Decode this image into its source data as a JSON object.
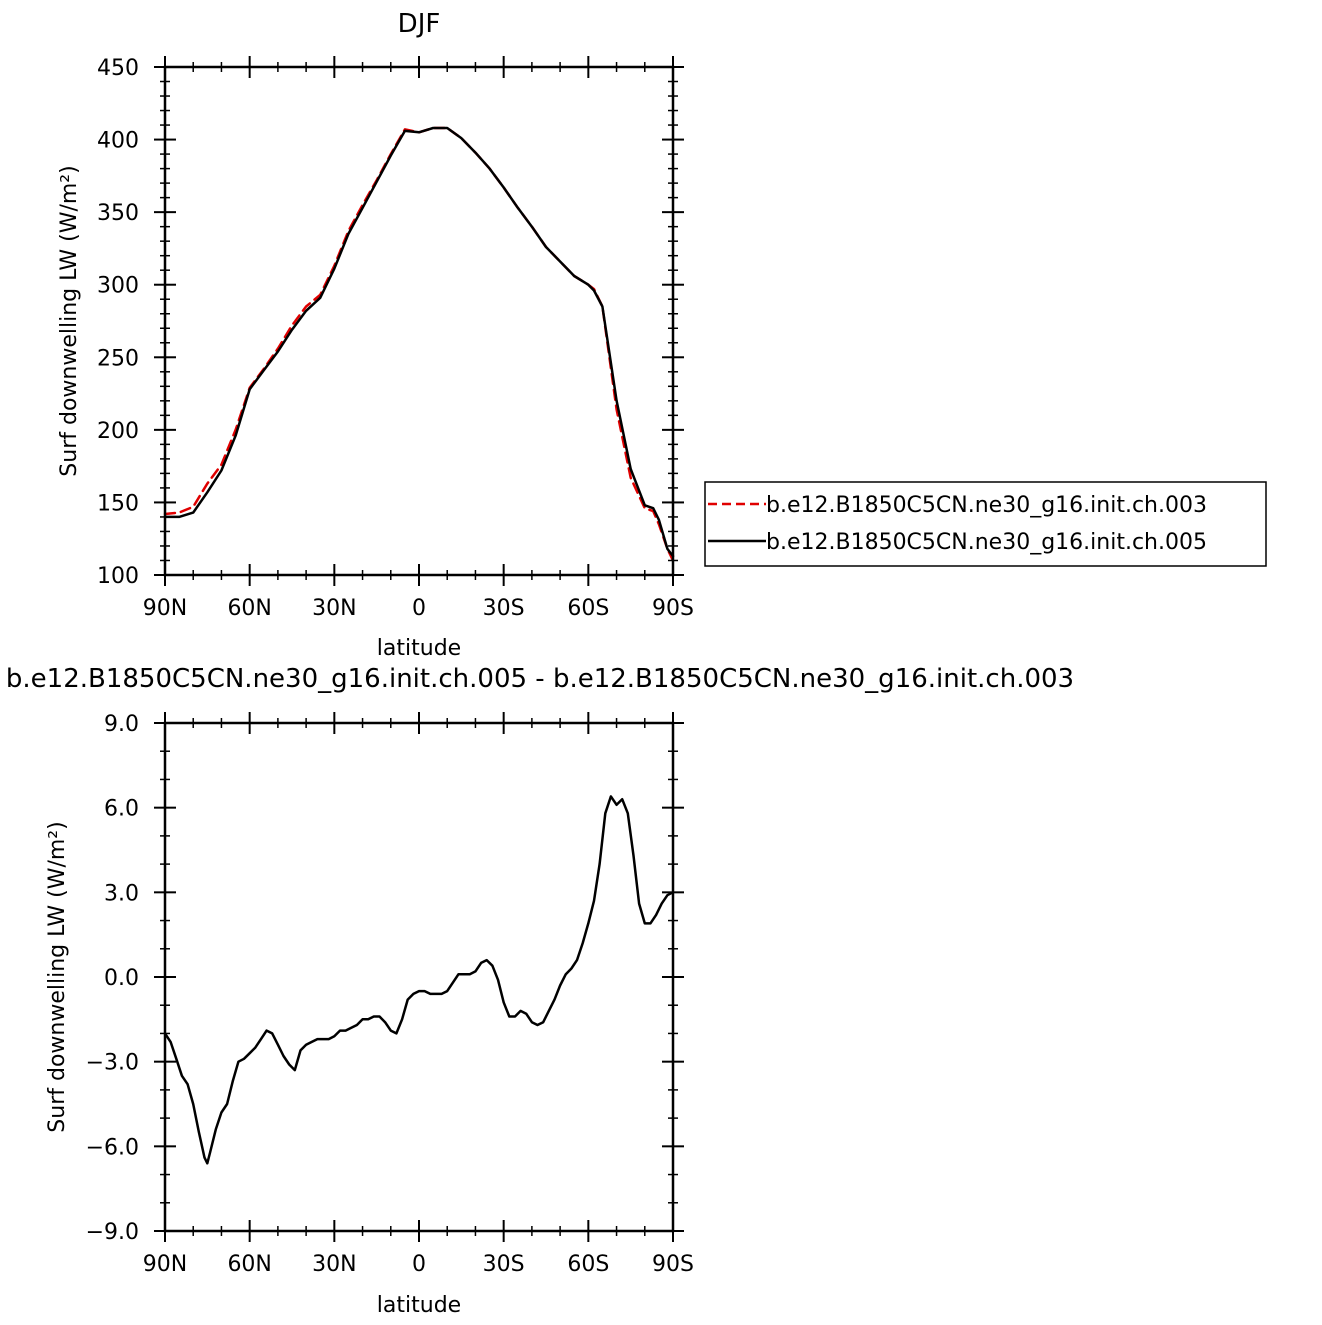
{
  "chart_data": [
    {
      "type": "line",
      "title": "DJF",
      "xlabel": "latitude",
      "ylabel": "Surf  downwelling LW (W/m²)",
      "xlim": [
        90,
        -90
      ],
      "ylim": [
        100,
        450
      ],
      "x_ticks": [
        {
          "value": 90,
          "label": "90N"
        },
        {
          "value": 60,
          "label": "60N"
        },
        {
          "value": 30,
          "label": "30N"
        },
        {
          "value": 0,
          "label": "0"
        },
        {
          "value": -30,
          "label": "30S"
        },
        {
          "value": -60,
          "label": "60S"
        },
        {
          "value": -90,
          "label": "90S"
        }
      ],
      "y_ticks": [
        "100",
        "150",
        "200",
        "250",
        "300",
        "350",
        "400",
        "450"
      ],
      "legend_placement": "right",
      "series": [
        {
          "name": "b.e12.B1850C5CN.ne30_g16.init.ch.003",
          "color": "#e00000",
          "dash": "dashed",
          "x": [
            90,
            85,
            80,
            75,
            70,
            65,
            60,
            55,
            50,
            45,
            40,
            35,
            30,
            25,
            20,
            15,
            10,
            5,
            0,
            -5,
            -10,
            -15,
            -20,
            -25,
            -30,
            -35,
            -40,
            -45,
            -50,
            -55,
            -60,
            -62,
            -65,
            -70,
            -75,
            -80,
            -83,
            -85,
            -88,
            -90
          ],
          "y": [
            142,
            143,
            147,
            163,
            176,
            200,
            229,
            242,
            256,
            272,
            285,
            293,
            313,
            337,
            355,
            372,
            390,
            407,
            405,
            408,
            408,
            401,
            391,
            380,
            367,
            353,
            340,
            326,
            316,
            306,
            300,
            297,
            285,
            214,
            167,
            146,
            144,
            135,
            118,
            110
          ]
        },
        {
          "name": "b.e12.B1850C5CN.ne30_g16.init.ch.005",
          "color": "#000000",
          "dash": "solid",
          "x": [
            90,
            85,
            80,
            75,
            70,
            65,
            60,
            55,
            50,
            45,
            40,
            35,
            30,
            25,
            20,
            15,
            10,
            5,
            0,
            -5,
            -10,
            -15,
            -20,
            -25,
            -30,
            -35,
            -40,
            -45,
            -50,
            -55,
            -60,
            -62,
            -65,
            -70,
            -75,
            -80,
            -83,
            -85,
            -88,
            -90
          ],
          "y": [
            140,
            140,
            143,
            157,
            172,
            196,
            228,
            241,
            254,
            269,
            282,
            291,
            311,
            335,
            353,
            371,
            389,
            406,
            405,
            408,
            408,
            401,
            391,
            380,
            367,
            353,
            340,
            326,
            316,
            306,
            300,
            296,
            285,
            220,
            173,
            148,
            146,
            138,
            118,
            113
          ]
        }
      ]
    },
    {
      "type": "line",
      "title": "b.e12.B1850C5CN.ne30_g16.init.ch.005 - b.e12.B1850C5CN.ne30_g16.init.ch.003",
      "xlabel": "latitude",
      "ylabel": "Surf  downwelling LW (W/m²)",
      "xlim": [
        90,
        -90
      ],
      "ylim": [
        -9,
        9
      ],
      "x_ticks": [
        {
          "value": 90,
          "label": "90N"
        },
        {
          "value": 60,
          "label": "60N"
        },
        {
          "value": 30,
          "label": "30N"
        },
        {
          "value": 0,
          "label": "0"
        },
        {
          "value": -30,
          "label": "30S"
        },
        {
          "value": -60,
          "label": "60S"
        },
        {
          "value": -90,
          "label": "90S"
        }
      ],
      "y_ticks": [
        "9.0",
        "6.0",
        "3.0",
        "0.0",
        "−3.0",
        "−6.0",
        "−9.0"
      ],
      "series": [
        {
          "color": "#000000",
          "dash": "solid",
          "x": [
            90,
            88,
            86,
            84,
            82,
            80,
            78,
            76,
            75,
            74,
            72,
            70,
            68,
            66,
            64,
            62,
            60,
            58,
            56,
            54,
            52,
            50,
            48,
            46,
            44,
            42,
            40,
            38,
            36,
            34,
            32,
            30,
            28,
            26,
            24,
            22,
            20,
            18,
            16,
            14,
            12,
            10,
            8,
            6,
            4,
            2,
            0,
            -2,
            -4,
            -6,
            -8,
            -10,
            -12,
            -14,
            -16,
            -18,
            -20,
            -22,
            -24,
            -26,
            -28,
            -30,
            -32,
            -34,
            -36,
            -38,
            -40,
            -42,
            -44,
            -46,
            -48,
            -50,
            -52,
            -54,
            -56,
            -58,
            -60,
            -62,
            -64,
            -66,
            -68,
            -70,
            -72,
            -74,
            -76,
            -78,
            -80,
            -82,
            -84,
            -86,
            -88,
            -90
          ],
          "y": [
            -2.0,
            -2.3,
            -2.9,
            -3.5,
            -3.8,
            -4.5,
            -5.5,
            -6.4,
            -6.6,
            -6.2,
            -5.4,
            -4.8,
            -4.5,
            -3.7,
            -3.0,
            -2.9,
            -2.7,
            -2.5,
            -2.2,
            -1.9,
            -2.0,
            -2.4,
            -2.8,
            -3.1,
            -3.3,
            -2.6,
            -2.4,
            -2.3,
            -2.2,
            -2.2,
            -2.2,
            -2.1,
            -1.9,
            -1.9,
            -1.8,
            -1.7,
            -1.5,
            -1.5,
            -1.4,
            -1.4,
            -1.6,
            -1.9,
            -2.0,
            -1.5,
            -0.8,
            -0.6,
            -0.5,
            -0.5,
            -0.6,
            -0.6,
            -0.6,
            -0.5,
            -0.2,
            0.1,
            0.1,
            0.1,
            0.2,
            0.5,
            0.6,
            0.4,
            -0.1,
            -0.9,
            -1.4,
            -1.4,
            -1.2,
            -1.3,
            -1.6,
            -1.7,
            -1.6,
            -1.2,
            -0.8,
            -0.3,
            0.1,
            0.3,
            0.6,
            1.2,
            1.9,
            2.7,
            4.0,
            5.8,
            6.4,
            6.1,
            6.3,
            5.8,
            4.3,
            2.6,
            1.9,
            1.9,
            2.2,
            2.6,
            2.9,
            3.0
          ]
        }
      ]
    }
  ]
}
